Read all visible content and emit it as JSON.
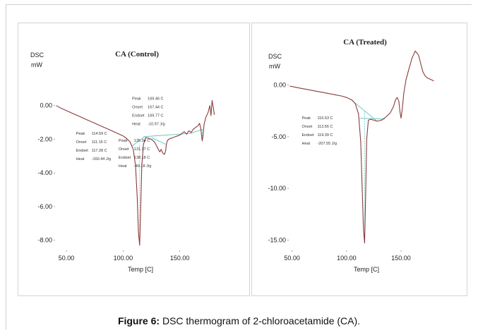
{
  "caption": {
    "label": "Figure 6:",
    "text": " DSC thermogram of 2-chloroacetamide (CA)."
  },
  "colors": {
    "curve": "#8a3b3b",
    "baseline": "#5fc3c3",
    "dash": "#5fc3c3"
  },
  "chart_data": [
    {
      "type": "line",
      "title": "CA (Control)",
      "ylabel_line1": "DSC",
      "ylabel_line2": "mW",
      "xlabel": "Temp",
      "xunit": "[C]",
      "xlim": [
        40,
        182
      ],
      "ylim": [
        -8.6,
        0.7
      ],
      "x_ticks": [
        {
          "value": 50,
          "label": "50.00"
        },
        {
          "value": 100,
          "label": "100.00"
        },
        {
          "value": 150,
          "label": "150.00"
        }
      ],
      "y_ticks": [
        {
          "value": 0,
          "label": "0.00"
        },
        {
          "value": -2,
          "label": "-2.00"
        },
        {
          "value": -4,
          "label": "-4.00"
        },
        {
          "value": -6,
          "label": "-6.00"
        },
        {
          "value": -8,
          "label": "-8.00"
        }
      ],
      "series": [
        {
          "x": [
            41,
            45,
            50,
            55,
            60,
            65,
            70,
            75,
            80,
            85,
            90,
            95,
            100,
            103,
            106,
            109,
            111,
            112.5,
            113.5,
            114.59,
            115.5,
            116.5,
            118,
            120,
            123,
            126,
            128,
            130,
            131.4,
            132.5,
            133.5,
            135.3,
            136.5,
            137.5,
            138.2,
            139,
            140,
            142,
            144,
            146,
            148,
            150,
            152,
            154,
            156,
            158,
            160,
            162,
            164,
            166,
            167.4,
            168.5,
            169.8,
            170.5,
            171.5,
            173,
            175,
            176.5,
            177.5,
            178.5,
            179.5,
            180.5
          ],
          "y": [
            0.0,
            -0.15,
            -0.3,
            -0.45,
            -0.6,
            -0.75,
            -0.9,
            -1.05,
            -1.2,
            -1.35,
            -1.5,
            -1.65,
            -1.8,
            -1.95,
            -2.15,
            -2.6,
            -3.6,
            -5.5,
            -7.5,
            -8.3,
            -6.2,
            -3.6,
            -2.3,
            -1.9,
            -1.95,
            -2.05,
            -2.2,
            -2.45,
            -2.65,
            -2.75,
            -2.6,
            -2.85,
            -2.9,
            -2.7,
            -2.3,
            -2.1,
            -2.0,
            -1.95,
            -1.9,
            -1.85,
            -1.8,
            -1.75,
            -1.65,
            -1.55,
            -1.7,
            -1.5,
            -1.6,
            -1.4,
            -1.3,
            -1.2,
            -1.05,
            -1.35,
            -2.1,
            -1.8,
            -1.1,
            -0.7,
            -0.4,
            0.0,
            -0.6,
            0.3,
            -0.1,
            -0.55
          ]
        }
      ],
      "baselines": [
        {
          "x": [
            108,
            119
          ],
          "y": [
            -2.4,
            -1.85
          ]
        },
        {
          "x": [
            125,
            137.5
          ],
          "y": [
            -1.9,
            -2.3
          ]
        },
        {
          "x": [
            160,
            170
          ],
          "y": [
            -1.65,
            -1.4
          ]
        },
        {
          "x": [
            118,
            160
          ],
          "y": [
            -1.85,
            -1.65
          ]
        }
      ],
      "dashed": [
        {
          "x": [
            114.59,
            114.59
          ],
          "y": [
            -8.3,
            -2.25
          ]
        },
        {
          "x": [
            169.8,
            169.8
          ],
          "y": [
            -2.1,
            -1.4
          ]
        }
      ],
      "annotations": [
        {
          "x": 108,
          "y": 0.35,
          "lines": [
            [
              "Peak",
              "169.46 C"
            ],
            [
              "Onset",
              "167.44 C"
            ],
            [
              "Endset",
              "169.77 C"
            ],
            [
              "Heat",
              "-10.97 J/g"
            ]
          ]
        },
        {
          "x": 58.5,
          "y": -1.72,
          "lines": [
            [
              "Peak",
              "114.59 C"
            ],
            [
              "Onset",
              "111.15 C"
            ],
            [
              "Endset",
              "117.28 C"
            ],
            [
              "Heat",
              "-160.44 J/g"
            ]
          ]
        },
        {
          "x": 96,
          "y": -2.15,
          "lines": [
            [
              "Peak",
              "135.34 C"
            ],
            [
              "Onset",
              "131.37 C"
            ],
            [
              "Endset",
              "138.18 C"
            ],
            [
              "Heat",
              "-49.18 J/g"
            ]
          ]
        }
      ]
    },
    {
      "type": "line",
      "title": "CA (Treated)",
      "ylabel_line1": "DSC",
      "ylabel_line2": "mW",
      "xlabel": "Temp",
      "xunit": "[C]",
      "xlim": [
        47,
        183
      ],
      "ylim": [
        -16.0,
        3.8
      ],
      "x_ticks": [
        {
          "value": 50,
          "label": "50.00"
        },
        {
          "value": 100,
          "label": "100.00"
        },
        {
          "value": 150,
          "label": "150.00"
        }
      ],
      "y_ticks": [
        {
          "value": 0,
          "label": "0.00"
        },
        {
          "value": -5,
          "label": "-5.00"
        },
        {
          "value": -10,
          "label": "-10.00"
        },
        {
          "value": -15,
          "label": "-15.00"
        }
      ],
      "series": [
        {
          "x": [
            48,
            55,
            60,
            65,
            70,
            75,
            80,
            85,
            90,
            95,
            100,
            105,
            108,
            111,
            113,
            114.5,
            115.5,
            116.53,
            117.5,
            118.5,
            120,
            122,
            125,
            128,
            132,
            136,
            140,
            143,
            145,
            146.5,
            148,
            149,
            150,
            151,
            152.5,
            154.5,
            157,
            160,
            163,
            166,
            168,
            170,
            172,
            174,
            176,
            178,
            180
          ],
          "y": [
            -0.1,
            -0.25,
            -0.35,
            -0.45,
            -0.55,
            -0.65,
            -0.75,
            -0.85,
            -0.95,
            -1.05,
            -1.2,
            -1.45,
            -1.8,
            -2.8,
            -5.5,
            -10.5,
            -14.0,
            -15.3,
            -10.5,
            -5.2,
            -3.4,
            -3.3,
            -3.4,
            -3.5,
            -3.4,
            -3.1,
            -2.7,
            -2.1,
            -1.4,
            -1.2,
            -1.6,
            -2.6,
            -3.2,
            -2.4,
            -0.8,
            0.5,
            1.5,
            2.6,
            3.3,
            2.9,
            2.1,
            1.3,
            0.9,
            0.7,
            0.6,
            0.5,
            0.4
          ]
        }
      ],
      "baselines": [
        {
          "x": [
            104,
            128
          ],
          "y": [
            -1.4,
            -3.5
          ]
        },
        {
          "x": [
            112,
            135
          ],
          "y": [
            -3.2,
            -3.3
          ]
        }
      ],
      "dashed": [
        {
          "x": [
            116.53,
            116.53
          ],
          "y": [
            -15.3,
            -2.5
          ]
        }
      ],
      "annotations": [
        {
          "x": 59,
          "y": -3.3,
          "lines": [
            [
              "Peak",
              "116.53 C"
            ],
            [
              "Onset",
              "113.56 C"
            ],
            [
              "Endset",
              "119.39 C"
            ],
            [
              "Heat",
              "-207.55 J/g"
            ]
          ]
        }
      ]
    }
  ]
}
